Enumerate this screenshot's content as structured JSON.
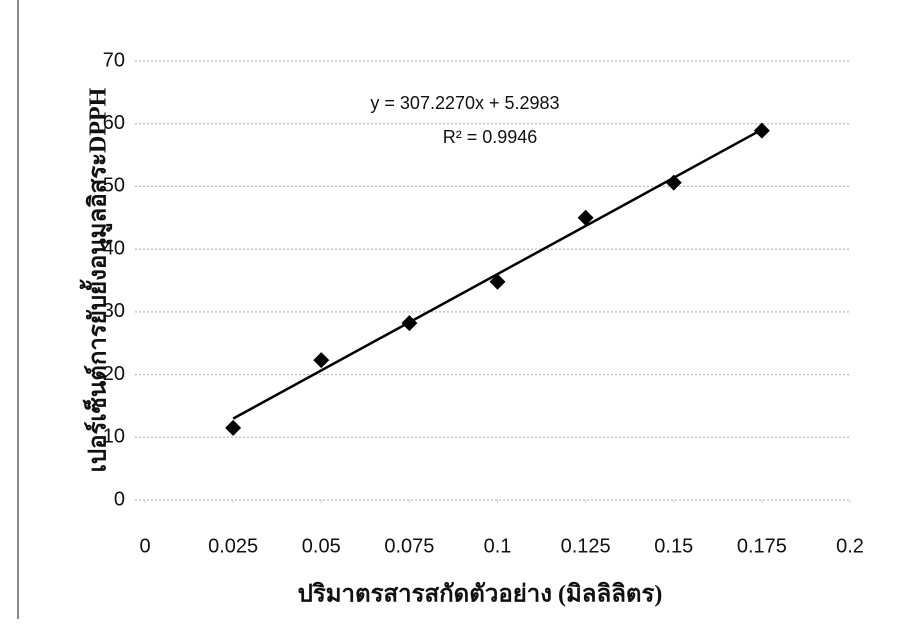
{
  "chart_data": {
    "type": "scatter",
    "x_label": "ปริมาตรสารสกัดตัวอย่าง (มิลลิลิตร)",
    "y_label": "เปอร์เซ็นต์การยับยั้งอนุมูลอิสระDPPH",
    "x": [
      0.025,
      0.05,
      0.075,
      0.1,
      0.125,
      0.15,
      0.175
    ],
    "series": [
      {
        "name": "DPPH",
        "color": "#000000",
        "values": [
          11.5,
          22.3,
          28.2,
          34.8,
          45.0,
          50.6,
          58.9
        ]
      }
    ],
    "xlim": [
      0,
      0.2
    ],
    "xticks": [
      0,
      0.025,
      0.05,
      0.075,
      0.1,
      0.125,
      0.15,
      0.175,
      0.2
    ],
    "ylim": [
      0,
      70
    ],
    "yticks": [
      0,
      10,
      20,
      30,
      40,
      50,
      60,
      70
    ],
    "grid": true,
    "trendline": {
      "equation": "y = 307.2270x + 5.2983",
      "r_squared_label": "R² = 0.9946",
      "slope": 307.227,
      "intercept": 5.2983
    }
  }
}
